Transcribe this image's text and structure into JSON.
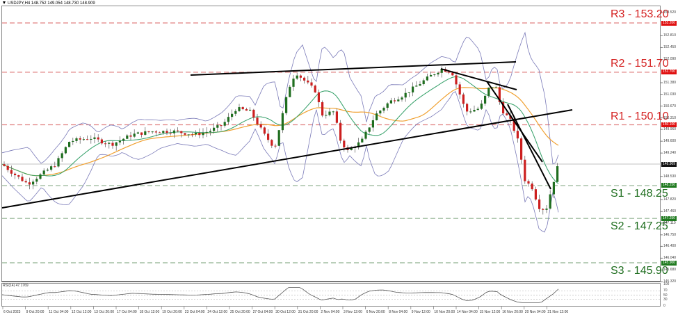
{
  "header": {
    "symbol_line": "USDJPY,H4  148.752 149.054 148.730 148.909"
  },
  "chart_data": {
    "type": "candlestick",
    "title": "USDJPY,H4",
    "ohlc_current": {
      "open": 148.752,
      "high": 149.054,
      "low": 148.73,
      "close": 148.909
    },
    "xlabel": "",
    "ylabel": "",
    "ylim": [
      145.3,
      153.7
    ],
    "y_ticks": [
      "153.520",
      "152.810",
      "152.450",
      "152.090",
      "151.380",
      "151.030",
      "150.670",
      "150.310",
      "149.960",
      "149.600",
      "149.240",
      "148.530",
      "147.820",
      "147.460",
      "147.110",
      "146.750",
      "146.400",
      "146.040",
      "145.680",
      "145.320"
    ],
    "x_ticks": [
      "6 Oct 2023",
      "9 Oct 20:00",
      "11 Oct 04:00",
      "12 Oct 12:00",
      "13 Oct 20:00",
      "17 Oct 04:00",
      "18 Oct 12:00",
      "19 Oct 20:00",
      "23 Oct 04:00",
      "24 Oct 12:00",
      "25 Oct 20:00",
      "27 Oct 04:00",
      "30 Oct 12:00",
      "31 Oct 20:00",
      "2 Nov 04:00",
      "3 Nov 12:00",
      "6 Nov 20:00",
      "8 Nov 04:00",
      "9 Nov 12:00",
      "10 Nov 20:00",
      "14 Nov 04:00",
      "15 Nov 12:00",
      "16 Nov 20:00",
      "20 Nov 04:00",
      "21 Nov 12:00"
    ],
    "levels": [
      {
        "name": "R3",
        "value": 153.2,
        "label": "R3 - 153.20",
        "tag": "153.200",
        "color": "#d42020"
      },
      {
        "name": "R2",
        "value": 151.7,
        "label": "R2 - 151.70",
        "tag": "151.700",
        "color": "#d42020"
      },
      {
        "name": "R1",
        "value": 150.1,
        "label": "R1 - 150.10",
        "tag": "150.100",
        "color": "#d42020"
      },
      {
        "name": "S1",
        "value": 148.25,
        "label": "S1 - 148.25",
        "tag": "148.250",
        "color": "#1f6e1f"
      },
      {
        "name": "S2",
        "value": 147.25,
        "label": "S2 - 147.25",
        "tag": "147.250",
        "color": "#1f6e1f"
      },
      {
        "name": "S3",
        "value": 145.9,
        "label": "S3 - 145.90",
        "tag": "145.900",
        "color": "#1f6e1f"
      }
    ],
    "current_price_tag": "148.909",
    "indicators": {
      "bollinger_bands": {
        "color": "#7a7ab8"
      },
      "ma_fast": {
        "color": "#3aa86a"
      },
      "ma_slow": {
        "color": "#f0a030"
      },
      "trendlines": {
        "color": "#000000"
      }
    },
    "rsi": {
      "label": "RSI(14) 47.1769",
      "period": 14,
      "value": 47.1769,
      "ticks": [
        "100",
        "70",
        "50",
        "30",
        "0"
      ],
      "ylim": [
        0,
        100
      ]
    },
    "candle_colors": {
      "up": "#1f6e1f",
      "down": "#cc1f1f"
    }
  }
}
